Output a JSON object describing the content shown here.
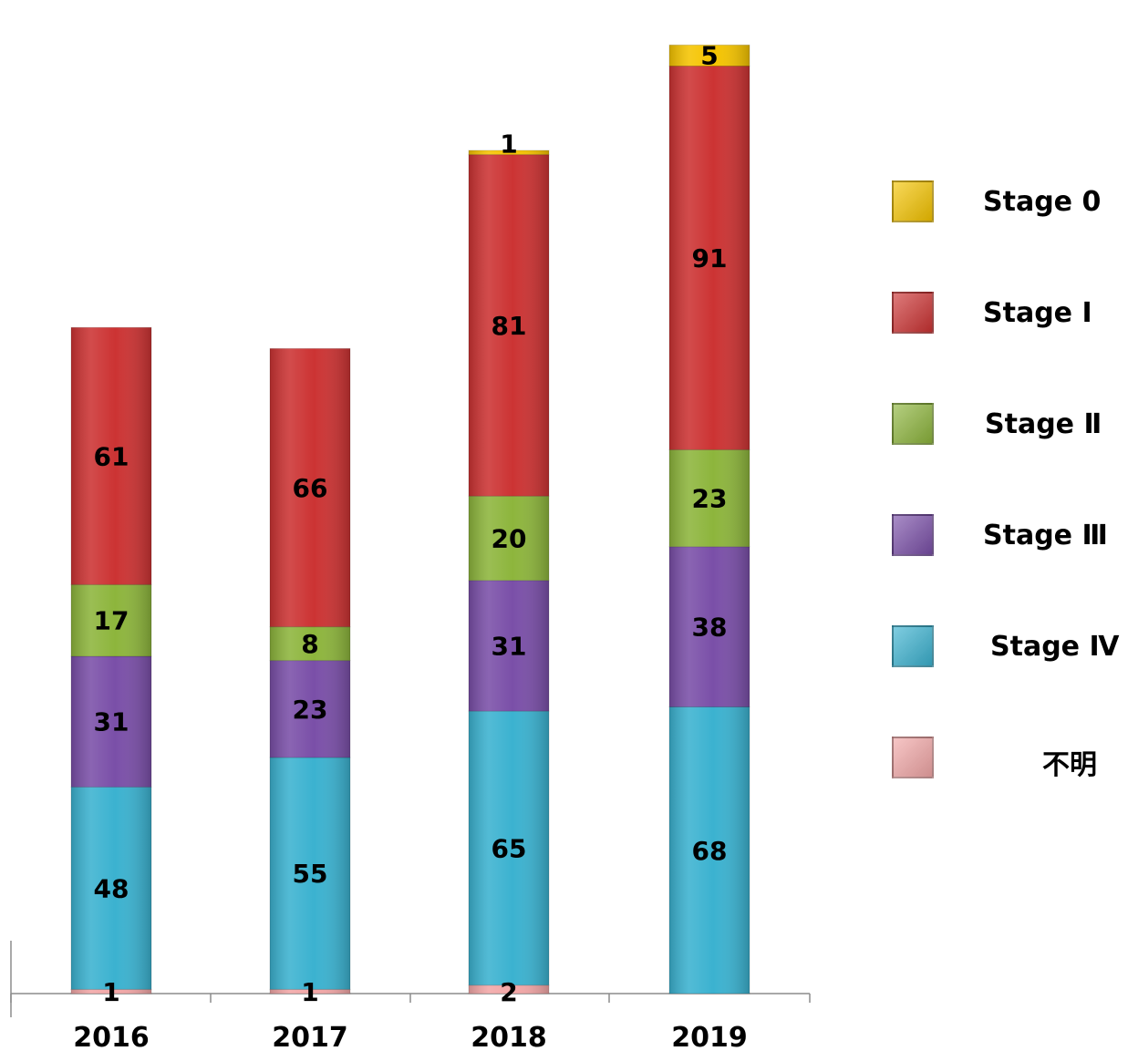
{
  "chart_data": {
    "type": "bar",
    "stacked": true,
    "categories": [
      "2016",
      "2017",
      "2018",
      "2019"
    ],
    "series": [
      {
        "name": "不明",
        "color": "#f2a7a7",
        "values": [
          1,
          1,
          2,
          0
        ]
      },
      {
        "name": "Stage Ⅳ",
        "color": "#3bb2d0",
        "values": [
          48,
          55,
          65,
          68
        ]
      },
      {
        "name": "Stage Ⅲ",
        "color": "#7a4fa8",
        "values": [
          31,
          23,
          31,
          38
        ]
      },
      {
        "name": "Stage Ⅱ",
        "color": "#8db53c",
        "values": [
          17,
          8,
          20,
          23
        ]
      },
      {
        "name": "Stage Ⅰ",
        "color": "#cc3333",
        "values": [
          61,
          66,
          81,
          91
        ]
      },
      {
        "name": "Stage 0",
        "color": "#f5c400",
        "values": [
          0,
          0,
          1,
          5
        ]
      }
    ],
    "legend": {
      "position": "right",
      "entries": [
        "Stage 0",
        "Stage Ⅰ",
        "Stage Ⅱ",
        "Stage Ⅲ",
        "Stage Ⅳ",
        "不明"
      ]
    },
    "xlabel": "",
    "ylabel": "",
    "ylim": [
      0,
      232
    ],
    "grid": false,
    "data_labels": true
  }
}
